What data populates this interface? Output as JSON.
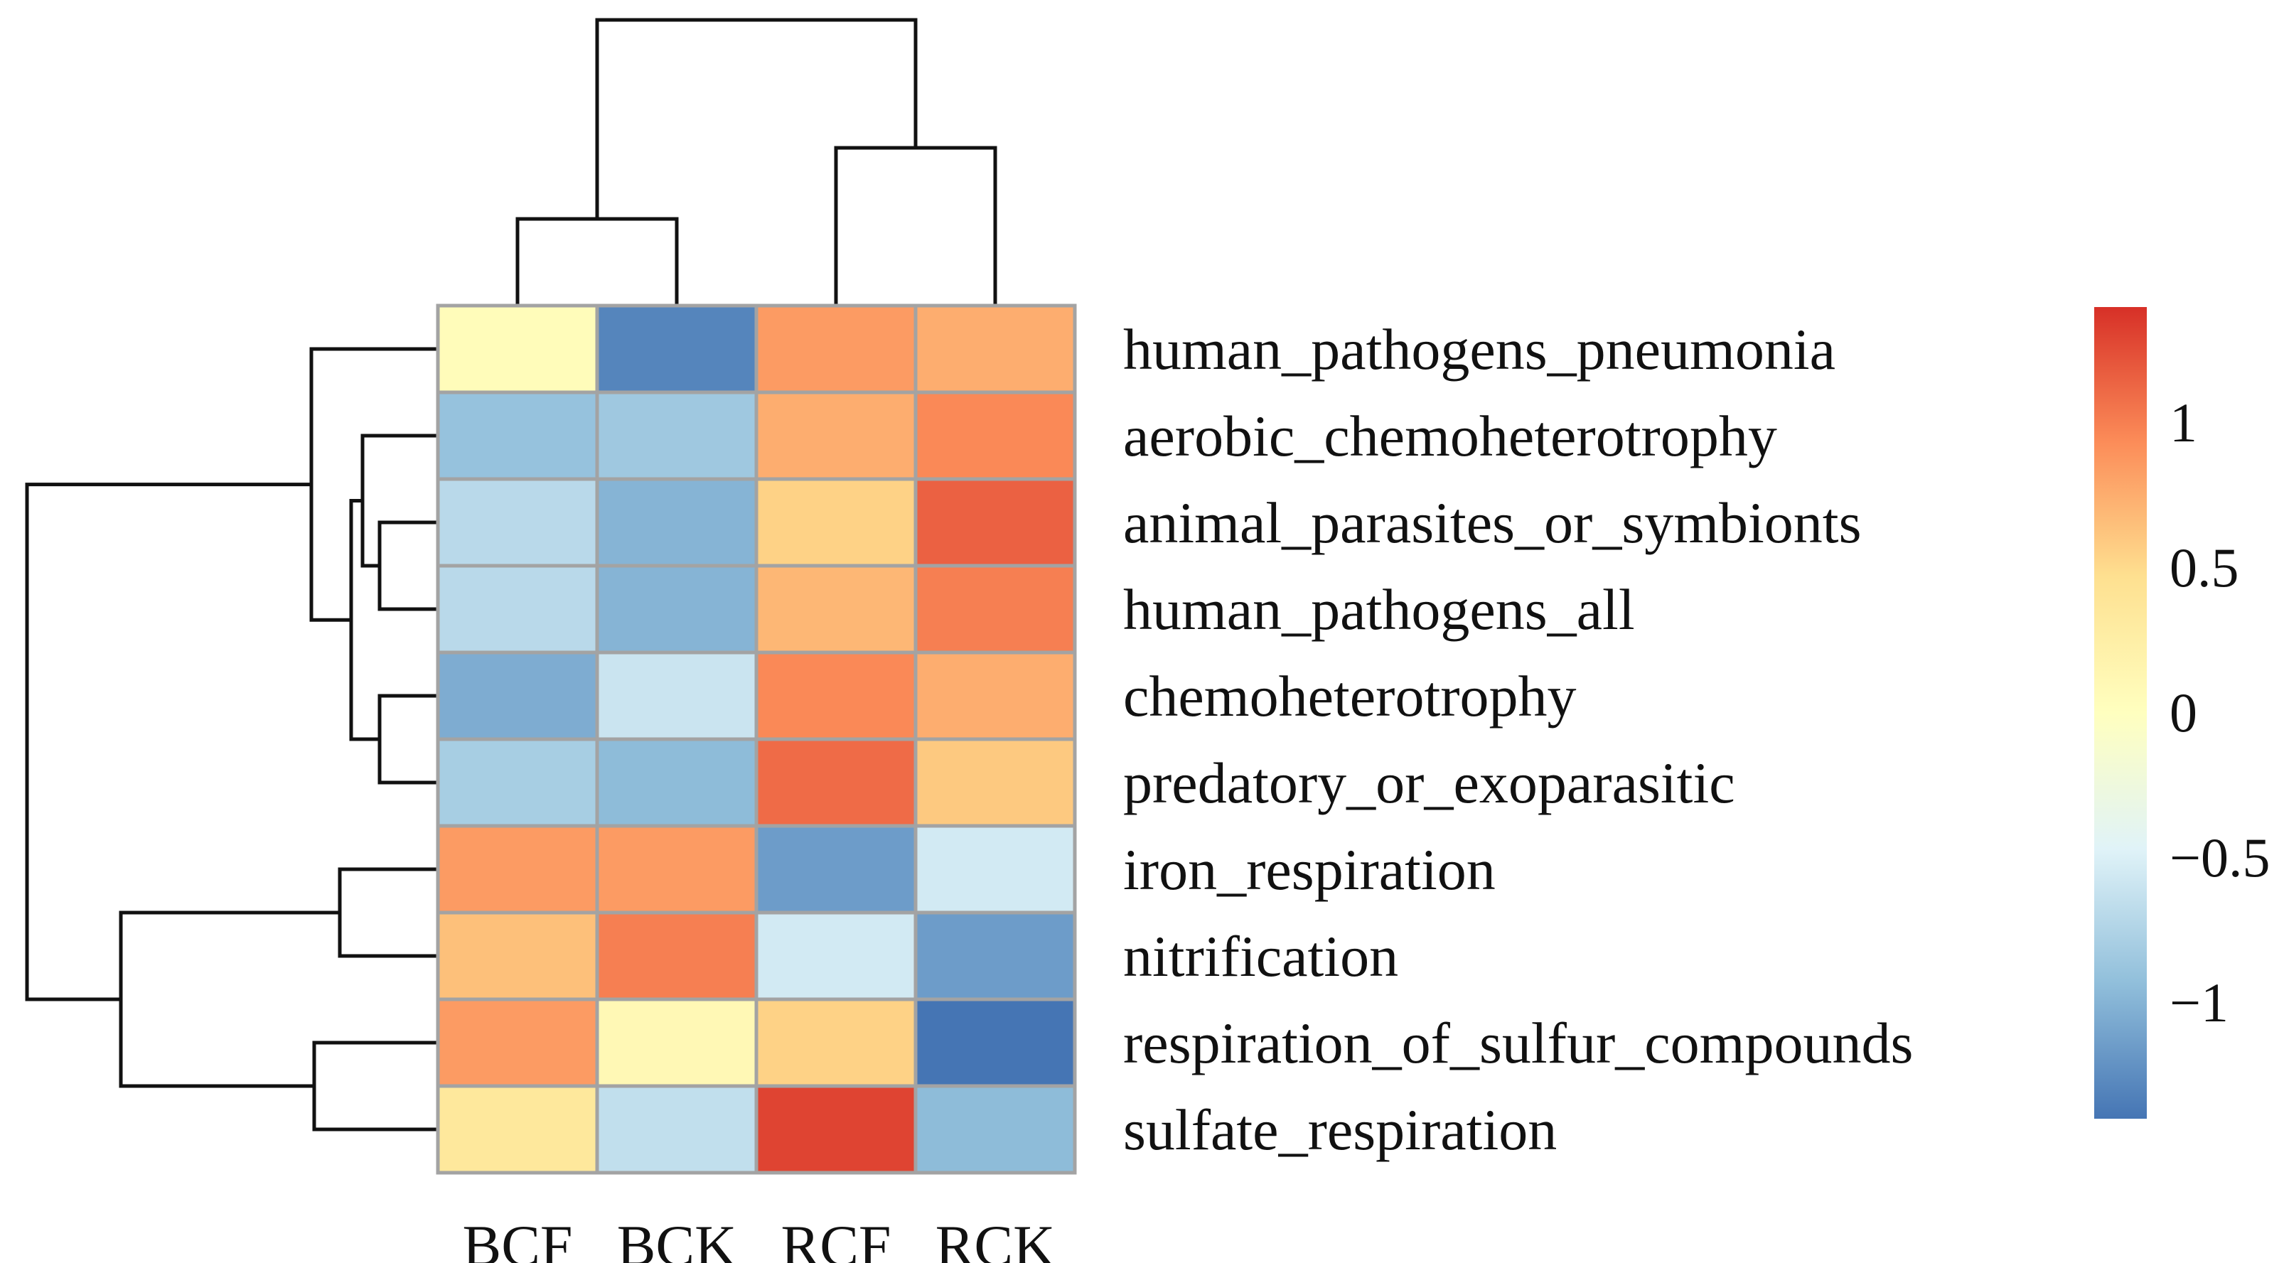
{
  "chart_data": {
    "type": "heatmap",
    "title": "",
    "columns": [
      "BCF",
      "BCK",
      "RCF",
      "RCK"
    ],
    "rows": [
      "human_pathogens_pneumonia",
      "aerobic_chemoheterotrophy",
      "animal_parasites_or_symbionts",
      "human_pathogens_all",
      "chemoheterotrophy",
      "predatory_or_exoparasitic",
      "iron_respiration",
      "nitrification",
      "respiration_of_sulfur_compounds",
      "sulfate_respiration"
    ],
    "values": [
      [
        0.05,
        -1.3,
        0.85,
        0.75
      ],
      [
        -0.9,
        -0.85,
        0.75,
        0.95
      ],
      [
        -0.7,
        -1.0,
        0.55,
        1.15
      ],
      [
        -0.7,
        -1.0,
        0.7,
        1.0
      ],
      [
        -1.05,
        -0.6,
        0.95,
        0.75
      ],
      [
        -0.8,
        -0.95,
        1.1,
        0.6
      ],
      [
        0.85,
        0.85,
        -1.15,
        -0.55
      ],
      [
        0.65,
        1.0,
        -0.55,
        -1.15
      ],
      [
        0.85,
        0.1,
        0.55,
        -1.4
      ],
      [
        0.35,
        -0.65,
        1.3,
        -0.95
      ]
    ],
    "color_scale": {
      "min": -1.4,
      "max": 1.4,
      "stops": [
        {
          "value": -1.4,
          "color": "#4575b4"
        },
        {
          "value": -0.93,
          "color": "#91bfdb"
        },
        {
          "value": -0.47,
          "color": "#e0f3f8"
        },
        {
          "value": 0.0,
          "color": "#ffffbf"
        },
        {
          "value": 0.47,
          "color": "#fee090"
        },
        {
          "value": 0.93,
          "color": "#fc8d59"
        },
        {
          "value": 1.4,
          "color": "#d73027"
        }
      ]
    },
    "legend": {
      "position": "right",
      "ticks": [
        {
          "value": 1,
          "label": "1"
        },
        {
          "value": 0.5,
          "label": "0.5"
        },
        {
          "value": 0,
          "label": "0"
        },
        {
          "value": -0.5,
          "label": "−0.5"
        },
        {
          "value": -1,
          "label": "−1"
        }
      ]
    },
    "column_dendrogram": {
      "merges": [
        {
          "left": "BCF",
          "right": "BCK",
          "height": 0.3
        },
        {
          "left": "RCF",
          "right": "RCK",
          "height": 0.55
        },
        {
          "left": "BCF+BCK",
          "right": "RCF+RCK",
          "height": 1.0
        }
      ]
    },
    "row_dendrogram": {
      "merges": [
        {
          "left": "animal_parasites_or_symbionts",
          "right": "human_pathogens_all",
          "height": 0.2
        },
        {
          "left": "aerobic_chemoheterotrophy",
          "right": "animal_parasites_or_symbionts+human_pathogens_all",
          "height": 0.26
        },
        {
          "left": "chemoheterotrophy",
          "right": "predatory_or_exoparasitic",
          "height": 0.2
        },
        {
          "left": "cluster_a",
          "right": "cluster_b",
          "height": 0.3
        },
        {
          "left": "human_pathogens_pneumonia",
          "right": "cluster_c",
          "height": 0.44
        },
        {
          "left": "iron_respiration",
          "right": "nitrification",
          "height": 0.34
        },
        {
          "left": "respiration_of_sulfur_compounds",
          "right": "sulfate_respiration",
          "height": 0.43
        },
        {
          "left": "cluster_d",
          "right": "cluster_e",
          "height": 1.11
        },
        {
          "left": "cluster_f",
          "right": "cluster_g",
          "height": 1.44
        }
      ]
    }
  }
}
